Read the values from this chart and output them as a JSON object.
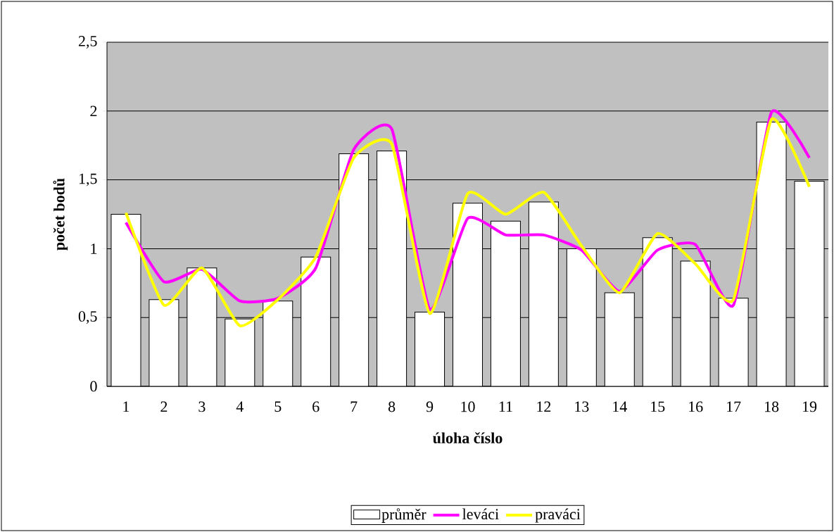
{
  "chart_data": {
    "type": "bar",
    "xlabel": "úloha číslo",
    "ylabel": "počet bodů",
    "categories": [
      "1",
      "2",
      "3",
      "4",
      "5",
      "6",
      "7",
      "8",
      "9",
      "10",
      "11",
      "12",
      "13",
      "14",
      "15",
      "16",
      "17",
      "18",
      "19"
    ],
    "series": [
      {
        "name": "průměr",
        "color": "#ffffff",
        "values": [
          1.25,
          0.63,
          0.86,
          0.49,
          0.62,
          0.94,
          1.69,
          1.71,
          0.54,
          1.33,
          1.2,
          1.34,
          1.0,
          0.68,
          1.08,
          0.91,
          0.64,
          1.92,
          1.49
        ]
      },
      {
        "name": "leváci",
        "type": "line",
        "color": "#ff00ff",
        "values": [
          1.19,
          0.76,
          0.85,
          0.62,
          0.64,
          0.86,
          1.72,
          1.87,
          0.56,
          1.22,
          1.1,
          1.1,
          0.99,
          0.69,
          0.99,
          1.03,
          0.59,
          1.99,
          1.66
        ]
      },
      {
        "name": "praváci",
        "type": "line",
        "color": "#ffff00",
        "values": [
          1.26,
          0.59,
          0.86,
          0.44,
          0.63,
          0.94,
          1.66,
          1.76,
          0.53,
          1.4,
          1.25,
          1.41,
          1.02,
          0.68,
          1.11,
          0.89,
          0.63,
          1.94,
          1.45
        ]
      }
    ],
    "ylim": [
      0,
      2.5
    ],
    "yticks": [
      0,
      {
        "value": 0.5,
        "label": "0,5"
      },
      1,
      {
        "value": 1.5,
        "label": "1,5"
      },
      2,
      {
        "value": 2.5,
        "label": "2,5"
      }
    ],
    "grid": "y",
    "legend": "bottom"
  }
}
